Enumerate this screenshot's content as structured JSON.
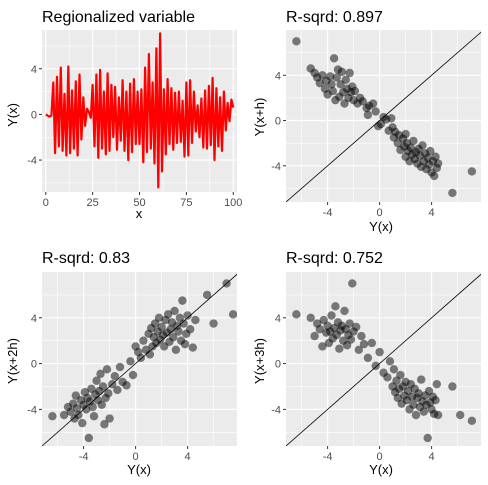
{
  "colors": {
    "panel_bg": "#ebebeb",
    "grid": "#ffffff",
    "line_series": "#ff0000",
    "point_fill": "#000000",
    "point_alpha": 0.5,
    "ref_line": "#000000"
  },
  "chart_data": [
    {
      "type": "line",
      "title": "Regionalized variable",
      "xlabel": "x",
      "ylabel": "Y(x)",
      "xlim": [
        -2,
        102
      ],
      "ylim": [
        -6.8,
        7.4
      ],
      "xticks": [
        0,
        25,
        50,
        75,
        100
      ],
      "yticks": [
        -4,
        0,
        4
      ],
      "grid": true,
      "x": [
        0,
        1,
        2,
        3,
        4,
        5,
        6,
        7,
        8,
        9,
        10,
        11,
        12,
        13,
        14,
        15,
        16,
        17,
        18,
        19,
        20,
        21,
        22,
        23,
        24,
        25,
        26,
        27,
        28,
        29,
        30,
        31,
        32,
        33,
        34,
        35,
        36,
        37,
        38,
        39,
        40,
        41,
        42,
        43,
        44,
        45,
        46,
        47,
        48,
        49,
        50,
        51,
        52,
        53,
        54,
        55,
        56,
        57,
        58,
        59,
        60,
        61,
        62,
        63,
        64,
        65,
        66,
        67,
        68,
        69,
        70,
        71,
        72,
        73,
        74,
        75,
        76,
        77,
        78,
        79,
        80,
        81,
        82,
        83,
        84,
        85,
        86,
        87,
        88,
        89,
        90,
        91,
        92,
        93,
        94,
        95,
        96,
        97,
        98,
        99,
        100
      ],
      "series": [
        {
          "values": [
            0.0,
            -0.1,
            -0.2,
            -0.1,
            2.8,
            -3.4,
            3.3,
            -2.8,
            4.1,
            -3.2,
            1.8,
            -3.6,
            4.2,
            -3.4,
            2.1,
            -3.0,
            2.9,
            -3.6,
            3.5,
            -2.2,
            1.5,
            -1.0,
            0.5,
            0.2,
            -0.3,
            2.6,
            -2.8,
            3.5,
            -3.8,
            3.9,
            -3.0,
            2.0,
            -3.5,
            3.6,
            -3.2,
            2.6,
            -2.0,
            2.4,
            -3.1,
            1.5,
            -2.3,
            3.0,
            -3.2,
            2.0,
            -4.0,
            2.7,
            -3.3,
            3.1,
            -2.6,
            2.0,
            -2.6,
            2.2,
            -4.2,
            4.1,
            -3.3,
            5.3,
            -3.0,
            2.8,
            -4.3,
            5.8,
            -6.4,
            7.1,
            -5.0,
            2.2,
            -3.5,
            3.1,
            -2.6,
            2.3,
            -3.1,
            1.9,
            -2.5,
            2.0,
            -2.4,
            1.2,
            -3.7,
            2.8,
            -3.6,
            3.0,
            -2.5,
            2.0,
            -1.5,
            0.8,
            -2.0,
            1.4,
            -2.9,
            2.1,
            -3.0,
            2.5,
            -2.7,
            3.2,
            -4.0,
            2.3,
            -2.8,
            1.5,
            -3.2,
            2.0,
            -1.4,
            1.0,
            -0.6,
            1.3,
            0.6
          ]
        }
      ]
    },
    {
      "type": "scatter",
      "title": "R-sqrd: 0.897",
      "xlabel": "Y(x)",
      "ylabel": "Y(x+h)",
      "xlim": [
        -7.2,
        7.8
      ],
      "ylim": [
        -7.2,
        8.0
      ],
      "xticks": [
        -4,
        0,
        4
      ],
      "yticks": [
        -4,
        0,
        4
      ],
      "grid": true,
      "reference_line": "y = x",
      "points": [
        [
          -6.4,
          7.0
        ],
        [
          -5.3,
          4.6
        ],
        [
          -5.0,
          4.2
        ],
        [
          -4.8,
          3.8
        ],
        [
          -4.6,
          3.3
        ],
        [
          -4.4,
          4.0
        ],
        [
          -4.2,
          2.8
        ],
        [
          -4.1,
          3.5
        ],
        [
          -4.0,
          2.3
        ],
        [
          -3.8,
          3.9
        ],
        [
          -3.7,
          3.2
        ],
        [
          -3.6,
          2.6
        ],
        [
          -3.5,
          5.5
        ],
        [
          -3.4,
          1.8
        ],
        [
          -3.3,
          3.8
        ],
        [
          -3.2,
          4.5
        ],
        [
          -3.1,
          2.1
        ],
        [
          -3.0,
          3.2
        ],
        [
          -2.9,
          4.3
        ],
        [
          -2.8,
          2.5
        ],
        [
          -2.7,
          1.5
        ],
        [
          -2.6,
          3.6
        ],
        [
          -2.5,
          2.8
        ],
        [
          -2.4,
          2.0
        ],
        [
          -2.3,
          4.2
        ],
        [
          -2.2,
          2.5
        ],
        [
          -2.1,
          3.0
        ],
        [
          -2.0,
          1.8
        ],
        [
          -1.9,
          2.6
        ],
        [
          -1.7,
          1.5
        ],
        [
          -1.5,
          2.0
        ],
        [
          -1.3,
          1.7
        ],
        [
          -1.0,
          1.1
        ],
        [
          -0.8,
          1.3
        ],
        [
          -0.5,
          1.5
        ],
        [
          -0.3,
          0.8
        ],
        [
          -0.1,
          -0.5
        ],
        [
          0.1,
          -0.3
        ],
        [
          0.3,
          0.3
        ],
        [
          0.5,
          0.1
        ],
        [
          0.7,
          -0.9
        ],
        [
          0.9,
          0.2
        ],
        [
          1.1,
          -1.5
        ],
        [
          1.2,
          -1.0
        ],
        [
          1.4,
          -2.0
        ],
        [
          1.5,
          -1.3
        ],
        [
          1.6,
          -2.6
        ],
        [
          1.8,
          -1.6
        ],
        [
          1.9,
          -2.3
        ],
        [
          2.0,
          -3.2
        ],
        [
          2.1,
          -2.0
        ],
        [
          2.2,
          -2.7
        ],
        [
          2.3,
          -3.6
        ],
        [
          2.4,
          -2.4
        ],
        [
          2.5,
          -3.0
        ],
        [
          2.6,
          -1.8
        ],
        [
          2.7,
          -3.4
        ],
        [
          2.8,
          -2.8
        ],
        [
          2.9,
          -3.8
        ],
        [
          3.0,
          -2.5
        ],
        [
          3.1,
          -3.1
        ],
        [
          3.2,
          -4.1
        ],
        [
          3.3,
          -2.2
        ],
        [
          3.4,
          -3.6
        ],
        [
          3.5,
          -2.9
        ],
        [
          3.6,
          -4.3
        ],
        [
          3.7,
          -3.3
        ],
        [
          3.8,
          -3.9
        ],
        [
          3.9,
          -2.7
        ],
        [
          4.0,
          -4.6
        ],
        [
          4.1,
          -3.6
        ],
        [
          4.2,
          -4.9
        ],
        [
          4.3,
          -3.2
        ],
        [
          4.4,
          -4.2
        ],
        [
          4.5,
          -3.8
        ],
        [
          5.6,
          -6.4
        ],
        [
          7.1,
          -4.5
        ],
        [
          -0.9,
          0.5
        ],
        [
          1.0,
          -0.6
        ],
        [
          2.0,
          -1.2
        ]
      ]
    },
    {
      "type": "scatter",
      "title": "R-sqrd: 0.83",
      "xlabel": "Y(x)",
      "ylabel": "Y(x+2h)",
      "xlim": [
        -7.2,
        7.8
      ],
      "ylim": [
        -7.2,
        8.0
      ],
      "xticks": [
        -4,
        0,
        4
      ],
      "yticks": [
        -4,
        0,
        4
      ],
      "grid": true,
      "reference_line": "y = x",
      "points": [
        [
          -6.4,
          -4.6
        ],
        [
          -5.5,
          -4.5
        ],
        [
          -5.2,
          -3.8
        ],
        [
          -5.0,
          -4.2
        ],
        [
          -4.8,
          -3.5
        ],
        [
          -4.7,
          -4.8
        ],
        [
          -4.6,
          -2.8
        ],
        [
          -4.5,
          -3.9
        ],
        [
          -4.4,
          -4.5
        ],
        [
          -4.2,
          -3.2
        ],
        [
          -4.1,
          -5.2
        ],
        [
          -4.0,
          -3.6
        ],
        [
          -3.9,
          -2.5
        ],
        [
          -3.8,
          -4.0
        ],
        [
          -3.7,
          -3.0
        ],
        [
          -3.6,
          -6.5
        ],
        [
          -3.5,
          -3.3
        ],
        [
          -3.4,
          -2.2
        ],
        [
          -3.3,
          -3.8
        ],
        [
          -3.2,
          -4.6
        ],
        [
          -3.1,
          -2.7
        ],
        [
          -3.0,
          -1.5
        ],
        [
          -2.9,
          -3.2
        ],
        [
          -2.8,
          -2.4
        ],
        [
          -2.7,
          -0.9
        ],
        [
          -2.6,
          -3.6
        ],
        [
          -2.5,
          -2.0
        ],
        [
          -2.4,
          -5.3
        ],
        [
          -2.3,
          -3.0
        ],
        [
          -2.2,
          -0.5
        ],
        [
          -2.1,
          -2.6
        ],
        [
          -2.0,
          -4.8
        ],
        [
          -1.8,
          -1.8
        ],
        [
          -1.6,
          -1.1
        ],
        [
          -1.4,
          -2.3
        ],
        [
          -1.2,
          -0.3
        ],
        [
          -1.0,
          -1.6
        ],
        [
          -0.7,
          -1.9
        ],
        [
          -0.4,
          0.2
        ],
        [
          -0.2,
          -1.0
        ],
        [
          0.0,
          1.5
        ],
        [
          0.2,
          1.0
        ],
        [
          0.4,
          0.5
        ],
        [
          0.6,
          2.0
        ],
        [
          0.8,
          1.2
        ],
        [
          1.0,
          2.6
        ],
        [
          1.1,
          0.8
        ],
        [
          1.2,
          3.1
        ],
        [
          1.3,
          1.5
        ],
        [
          1.4,
          2.3
        ],
        [
          1.5,
          3.5
        ],
        [
          1.6,
          1.8
        ],
        [
          1.7,
          2.8
        ],
        [
          1.8,
          4.0
        ],
        [
          1.9,
          2.1
        ],
        [
          2.0,
          3.2
        ],
        [
          2.1,
          2.5
        ],
        [
          2.2,
          1.5
        ],
        [
          2.3,
          3.8
        ],
        [
          2.4,
          2.7
        ],
        [
          2.5,
          4.3
        ],
        [
          2.6,
          1.9
        ],
        [
          2.7,
          3.0
        ],
        [
          2.8,
          3.6
        ],
        [
          2.9,
          2.3
        ],
        [
          3.0,
          4.6
        ],
        [
          3.1,
          1.2
        ],
        [
          3.2,
          3.3
        ],
        [
          3.3,
          2.8
        ],
        [
          3.4,
          4.0
        ],
        [
          3.5,
          2.0
        ],
        [
          3.6,
          5.5
        ],
        [
          3.7,
          3.5
        ],
        [
          3.8,
          1.7
        ],
        [
          3.9,
          2.6
        ],
        [
          4.0,
          4.2
        ],
        [
          4.2,
          3.0
        ],
        [
          4.4,
          1.4
        ],
        [
          4.6,
          3.8
        ],
        [
          5.5,
          6.0
        ],
        [
          6.0,
          3.5
        ],
        [
          7.0,
          7.0
        ],
        [
          7.5,
          4.3
        ]
      ]
    },
    {
      "type": "scatter",
      "title": "R-sqrd: 0.752",
      "xlabel": "Y(x)",
      "ylabel": "Y(x+3h)",
      "xlim": [
        -7.2,
        7.8
      ],
      "ylim": [
        -7.2,
        8.0
      ],
      "xticks": [
        -4,
        0,
        4
      ],
      "yticks": [
        -4,
        0,
        4
      ],
      "grid": true,
      "reference_line": "y = x",
      "points": [
        [
          -6.4,
          4.3
        ],
        [
          -5.3,
          4.0
        ],
        [
          -5.0,
          2.4
        ],
        [
          -4.8,
          3.5
        ],
        [
          -4.6,
          3.0
        ],
        [
          -4.4,
          1.5
        ],
        [
          -4.3,
          3.8
        ],
        [
          -4.1,
          2.7
        ],
        [
          -4.0,
          3.3
        ],
        [
          -3.9,
          1.8
        ],
        [
          -3.8,
          2.8
        ],
        [
          -3.7,
          4.2
        ],
        [
          -3.6,
          2.2
        ],
        [
          -3.5,
          3.1
        ],
        [
          -3.4,
          5.0
        ],
        [
          -3.3,
          2.5
        ],
        [
          -3.2,
          3.6
        ],
        [
          -3.1,
          1.3
        ],
        [
          -3.0,
          2.9
        ],
        [
          -2.9,
          3.3
        ],
        [
          -2.8,
          2.0
        ],
        [
          -2.7,
          4.6
        ],
        [
          -2.6,
          3.0
        ],
        [
          -2.5,
          1.6
        ],
        [
          -2.4,
          2.5
        ],
        [
          -2.3,
          3.5
        ],
        [
          -2.2,
          2.1
        ],
        [
          -2.1,
          7.0
        ],
        [
          -2.0,
          2.8
        ],
        [
          -1.8,
          3.2
        ],
        [
          -1.6,
          1.2
        ],
        [
          -1.4,
          2.4
        ],
        [
          -1.2,
          1.7
        ],
        [
          -0.9,
          0.5
        ],
        [
          -0.6,
          1.8
        ],
        [
          -0.3,
          -0.2
        ],
        [
          0.0,
          1.0
        ],
        [
          0.3,
          -0.8
        ],
        [
          0.6,
          -1.2
        ],
        [
          0.8,
          0.2
        ],
        [
          1.0,
          -2.0
        ],
        [
          1.1,
          -0.5
        ],
        [
          1.2,
          -2.5
        ],
        [
          1.3,
          -1.5
        ],
        [
          1.4,
          -3.0
        ],
        [
          1.5,
          -2.2
        ],
        [
          1.6,
          -1.0
        ],
        [
          1.7,
          -3.5
        ],
        [
          1.8,
          -2.0
        ],
        [
          1.9,
          -2.8
        ],
        [
          2.0,
          -1.6
        ],
        [
          2.1,
          -3.2
        ],
        [
          2.2,
          -2.4
        ],
        [
          2.3,
          -4.0
        ],
        [
          2.4,
          -1.8
        ],
        [
          2.5,
          -2.9
        ],
        [
          2.6,
          -3.6
        ],
        [
          2.7,
          -2.2
        ],
        [
          2.8,
          -4.5
        ],
        [
          2.9,
          -3.0
        ],
        [
          3.0,
          -2.6
        ],
        [
          3.1,
          -3.8
        ],
        [
          3.2,
          -1.4
        ],
        [
          3.3,
          -3.3
        ],
        [
          3.4,
          -4.2
        ],
        [
          3.5,
          -2.8
        ],
        [
          3.6,
          -3.6
        ],
        [
          3.7,
          -6.5
        ],
        [
          3.8,
          -2.4
        ],
        [
          3.9,
          -3.4
        ],
        [
          4.0,
          -4.0
        ],
        [
          4.1,
          -2.9
        ],
        [
          4.2,
          -4.4
        ],
        [
          4.3,
          -3.2
        ],
        [
          4.4,
          -1.8
        ],
        [
          4.5,
          -4.5
        ],
        [
          5.6,
          -2.0
        ],
        [
          6.2,
          -4.5
        ],
        [
          7.1,
          -5.0
        ]
      ]
    }
  ]
}
